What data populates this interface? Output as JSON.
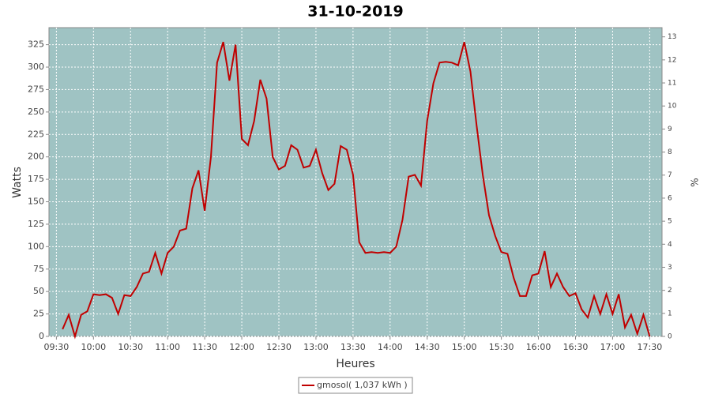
{
  "chart_data": {
    "type": "line",
    "title": "31-10-2019",
    "xlabel": "Heures",
    "ylabel": "Watts",
    "y2label": "%",
    "x": [
      "09:35",
      "09:40",
      "09:45",
      "09:50",
      "09:55",
      "10:00",
      "10:05",
      "10:10",
      "10:15",
      "10:20",
      "10:25",
      "10:30",
      "10:35",
      "10:40",
      "10:45",
      "10:50",
      "10:55",
      "11:00",
      "11:05",
      "11:10",
      "11:15",
      "11:20",
      "11:25",
      "11:30",
      "11:35",
      "11:40",
      "11:45",
      "11:50",
      "11:55",
      "12:00",
      "12:05",
      "12:10",
      "12:15",
      "12:20",
      "12:25",
      "12:30",
      "12:35",
      "12:40",
      "12:45",
      "12:50",
      "12:55",
      "13:00",
      "13:05",
      "13:10",
      "13:15",
      "13:20",
      "13:25",
      "13:30",
      "13:35",
      "13:40",
      "13:45",
      "13:50",
      "13:55",
      "14:00",
      "14:05",
      "14:10",
      "14:15",
      "14:20",
      "14:25",
      "14:30",
      "14:35",
      "14:40",
      "14:45",
      "14:50",
      "14:55",
      "15:00",
      "15:05",
      "15:10",
      "15:15",
      "15:20",
      "15:25",
      "15:30",
      "15:35",
      "15:40",
      "15:45",
      "15:50",
      "15:55",
      "16:00",
      "16:05",
      "16:10",
      "16:15",
      "16:20",
      "16:25",
      "16:30",
      "16:35",
      "16:40",
      "16:45",
      "16:50",
      "16:55",
      "17:00",
      "17:05",
      "17:10",
      "17:15",
      "17:20",
      "17:25",
      "17:30"
    ],
    "series": [
      {
        "name": "gmosol( 1,037 kWh )",
        "color": "#c00000",
        "values": [
          8,
          24,
          0,
          24,
          28,
          47,
          46,
          47,
          43,
          25,
          46,
          45,
          55,
          70,
          72,
          93,
          70,
          93,
          100,
          118,
          120,
          165,
          185,
          140,
          200,
          305,
          328,
          285,
          325,
          220,
          213,
          240,
          286,
          265,
          200,
          186,
          190,
          213,
          208,
          188,
          190,
          208,
          182,
          163,
          170,
          212,
          208,
          180,
          105,
          93,
          94,
          93,
          94,
          93,
          100,
          130,
          178,
          180,
          168,
          240,
          282,
          305,
          306,
          305,
          302,
          328,
          295,
          235,
          180,
          135,
          112,
          94,
          92,
          65,
          45,
          45,
          68,
          70,
          95,
          55,
          70,
          55,
          45,
          48,
          30,
          21,
          45,
          25,
          47,
          25,
          47,
          10,
          24,
          3,
          24,
          0
        ]
      }
    ],
    "xlim": [
      "09:24",
      "17:40"
    ],
    "xticks": [
      "09:30",
      "10:00",
      "10:30",
      "11:00",
      "11:30",
      "12:00",
      "12:30",
      "13:00",
      "13:30",
      "14:00",
      "14:30",
      "15:00",
      "15:30",
      "16:00",
      "16:30",
      "17:00",
      "17:30"
    ],
    "ylim": [
      0,
      344
    ],
    "yticks": [
      0,
      25,
      50,
      75,
      100,
      125,
      150,
      175,
      200,
      225,
      250,
      275,
      300,
      325
    ],
    "y2lim": [
      0,
      13.4
    ],
    "y2ticks": [
      0,
      1,
      2,
      3,
      4,
      5,
      6,
      7,
      8,
      9,
      10,
      11,
      12,
      13
    ],
    "grid": true,
    "plot_background": "#9fc3c3",
    "legend": "bottom"
  }
}
